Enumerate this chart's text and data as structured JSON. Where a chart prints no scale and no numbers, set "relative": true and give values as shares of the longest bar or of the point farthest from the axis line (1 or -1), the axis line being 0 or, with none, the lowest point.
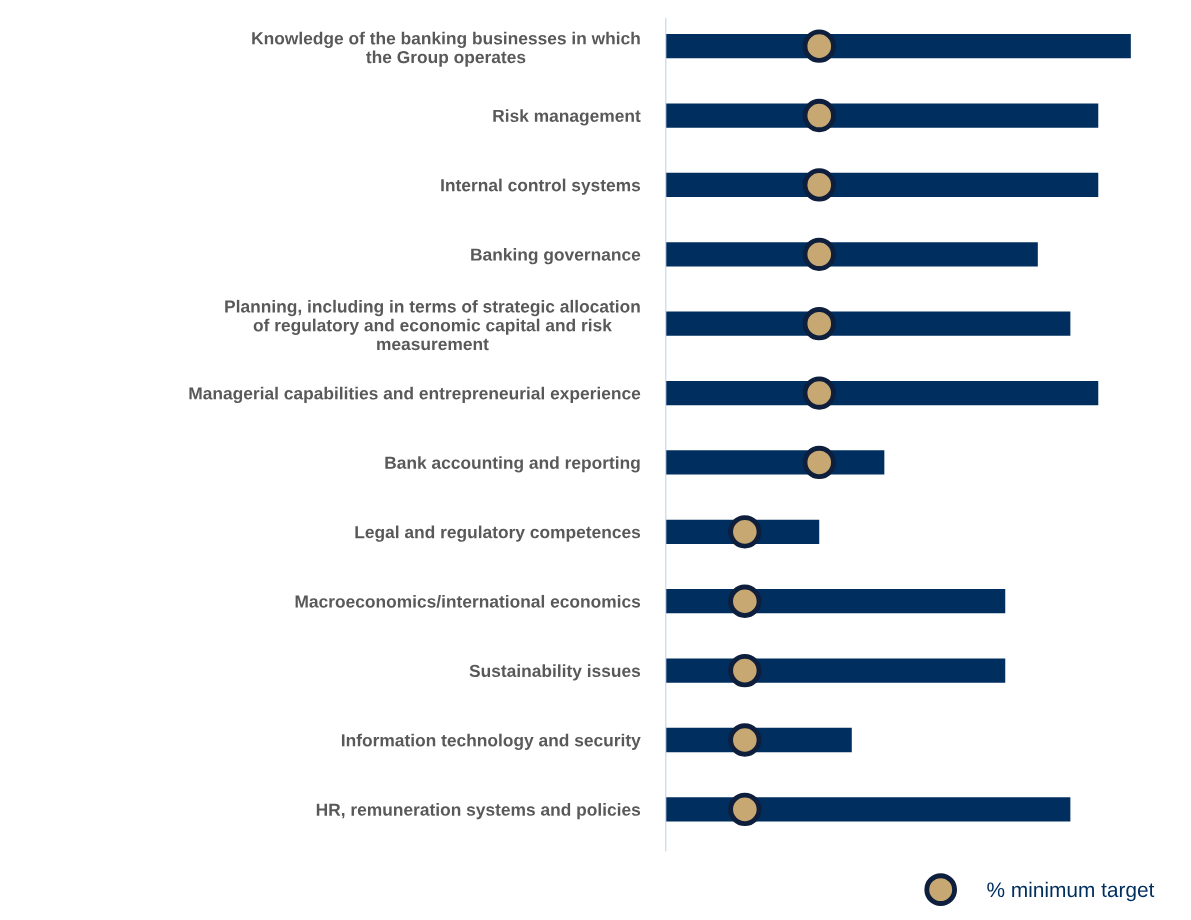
{
  "chart_data": {
    "type": "bar",
    "orientation": "horizontal",
    "relative": true,
    "legend": "bottom right",
    "categories": [
      "Knowledge of the banking businesses in which\nthe Group operates",
      "Risk management",
      "Internal control systems",
      "Banking governance",
      "Planning, including in terms of strategic allocation\nof regulatory and economic capital and risk\nmeasurement",
      "Managerial capabilities and entrepreneurial experience",
      "Bank accounting and reporting",
      "Legal and regulatory competences",
      "Macroeconomics/international economics",
      "Sustainability issues",
      "Information technology and security",
      "HR, remuneration systems and policies"
    ],
    "series": [
      {
        "color": "#002f5f",
        "values": [
          1.0,
          0.93,
          0.93,
          0.8,
          0.87,
          0.93,
          0.47,
          0.33,
          0.73,
          0.73,
          0.4,
          0.87
        ]
      },
      {
        "type": "scatter",
        "name": "% minimum target",
        "color": "#c8a872",
        "marker": "circle",
        "values": [
          0.33,
          0.33,
          0.33,
          0.33,
          0.33,
          0.33,
          0.33,
          0.17,
          0.17,
          0.17,
          0.17,
          0.17
        ]
      }
    ]
  }
}
